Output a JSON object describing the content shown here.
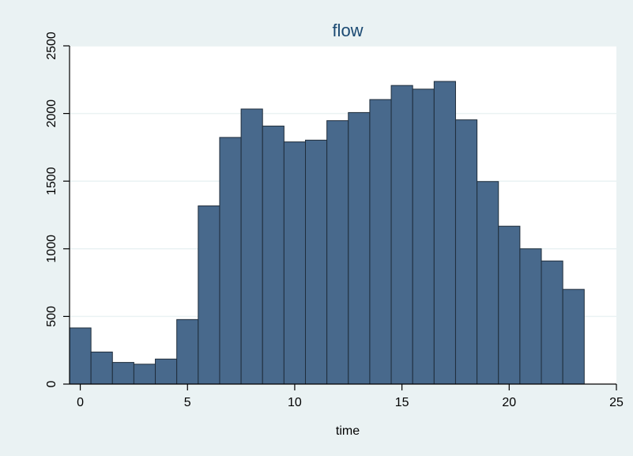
{
  "chart_data": {
    "type": "bar",
    "title": "flow",
    "xlabel": "time",
    "ylabel": "",
    "xlim": [
      -0.5,
      25
    ],
    "ylim": [
      0,
      2500
    ],
    "xticks": [
      0,
      5,
      10,
      15,
      20,
      25
    ],
    "yticks": [
      0,
      500,
      1000,
      1500,
      2000,
      2500
    ],
    "grid": true,
    "bar_color": "#48698c",
    "bar_edge_color": "#1f2d3b",
    "background_color": "#eaf2f3",
    "plot_background_color": "#ffffff",
    "title_color": "#1a4972",
    "categories": [
      0,
      1,
      2,
      3,
      4,
      5,
      6,
      7,
      8,
      9,
      10,
      11,
      12,
      13,
      14,
      15,
      16,
      17,
      18,
      19,
      20,
      21,
      22,
      23
    ],
    "values": [
      415,
      237,
      160,
      147,
      185,
      477,
      1317,
      1823,
      2033,
      1907,
      1790,
      1803,
      1947,
      2007,
      2103,
      2207,
      2180,
      2237,
      1953,
      1497,
      1167,
      1000,
      910,
      700
    ]
  }
}
